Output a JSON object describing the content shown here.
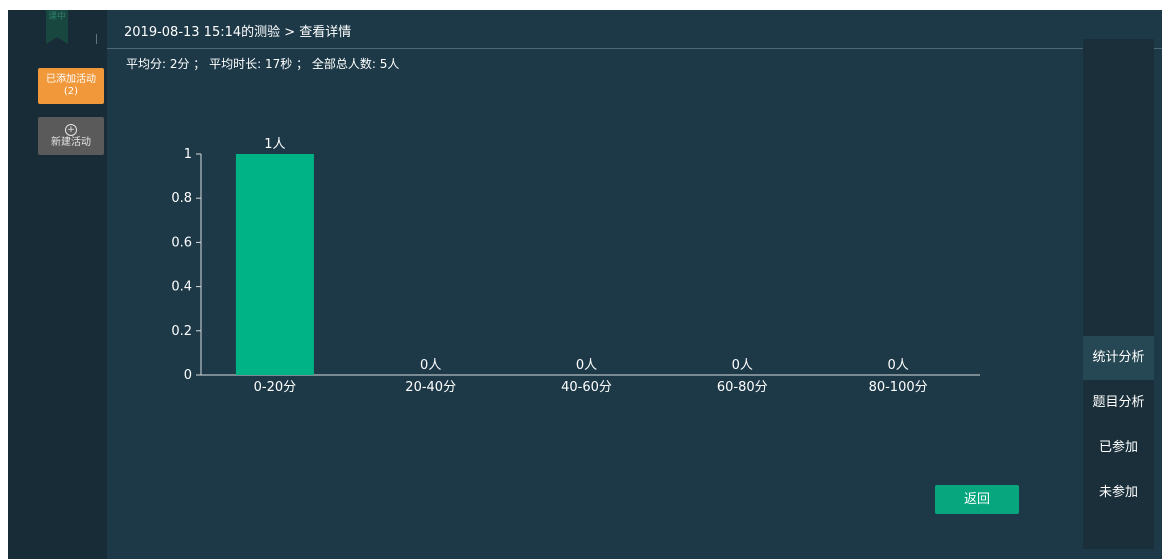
{
  "sidebar": {
    "logo_text": "课中",
    "added_button": {
      "line1": "已添加活动",
      "line2": "(2)"
    },
    "new_button": {
      "label": "新建活动"
    }
  },
  "header": {
    "breadcrumb": "2019-08-13 15:14的测验 > 查看详情"
  },
  "summary": "平均分: 2分 ； 平均时长: 17秒 ； 全部总人数: 5人",
  "chart_data": {
    "type": "bar",
    "categories": [
      "0-20分",
      "20-40分",
      "40-60分",
      "60-80分",
      "80-100分"
    ],
    "values": [
      1,
      0,
      0,
      0,
      0
    ],
    "data_labels": [
      "1人",
      "0人",
      "0人",
      "0人",
      "0人"
    ],
    "y_ticks": [
      "0",
      "0.2",
      "0.4",
      "0.6",
      "0.8",
      "1"
    ],
    "ylim": [
      0,
      1
    ],
    "bar_color": "#00b386",
    "grid": false
  },
  "right_tabs": [
    {
      "label": "统计分析",
      "active": true
    },
    {
      "label": "题目分析",
      "active": false
    },
    {
      "label": "已参加",
      "active": false
    },
    {
      "label": "未参加",
      "active": false
    }
  ],
  "back_button": {
    "label": "返回"
  }
}
